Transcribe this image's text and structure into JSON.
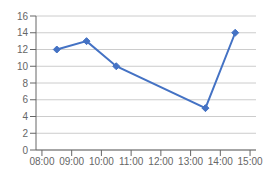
{
  "chart_data": {
    "type": "line",
    "x": [
      8.5,
      9.5,
      10.5,
      13.5,
      14.5
    ],
    "values": [
      12,
      13,
      10,
      5,
      14
    ],
    "color": "#4472C4",
    "marker": "diamond",
    "xlim": [
      7.8,
      15.2
    ],
    "xticks": [
      {
        "value": 8,
        "label": "08:00"
      },
      {
        "value": 9,
        "label": "09:00"
      },
      {
        "value": 10,
        "label": "10:00"
      },
      {
        "value": 11,
        "label": "11:00"
      },
      {
        "value": 12,
        "label": "12:00"
      },
      {
        "value": 13,
        "label": "13:00"
      },
      {
        "value": 14,
        "label": "14:00"
      },
      {
        "value": 15,
        "label": "15:00"
      }
    ],
    "ylim": [
      0,
      16
    ],
    "yticks": [
      0,
      2,
      4,
      6,
      8,
      10,
      12,
      14,
      16
    ],
    "grid": true
  }
}
